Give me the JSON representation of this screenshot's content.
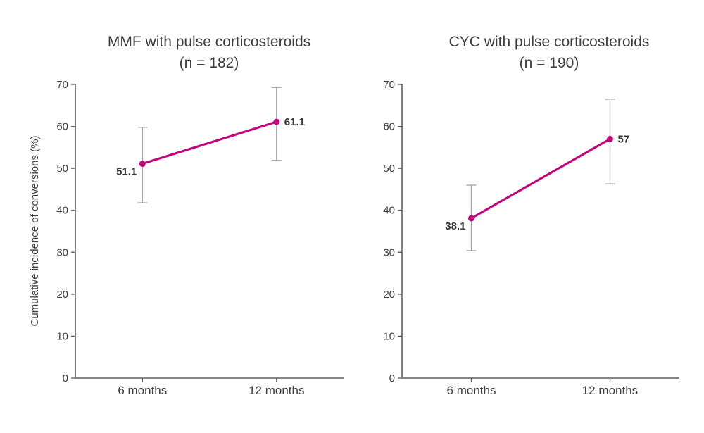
{
  "figure": {
    "background": "#ffffff",
    "text_color": "#3d3d3d",
    "axis_color": "#5f5f5f"
  },
  "chart_data": [
    {
      "type": "line",
      "title": "MMF with pulse corticosteroids",
      "subtitle": "(n = 182)",
      "ylabel": "Cumulative incidence of conversions (%)",
      "xlabel": "",
      "categories": [
        "6 months",
        "12 months"
      ],
      "series": [
        {
          "name": "Cumulative incidence of conversions",
          "values": [
            51.1,
            61.1
          ],
          "labels": [
            "51.1",
            "61.1"
          ],
          "error_low": [
            41.8,
            51.9
          ],
          "error_high": [
            59.8,
            69.3
          ]
        }
      ],
      "ylim": [
        0,
        70
      ],
      "yticks": [
        0,
        10,
        20,
        30,
        40,
        50,
        60,
        70
      ],
      "grid": false,
      "legend": "none",
      "line_color": "#c0087d",
      "marker_color": "#c0087d",
      "error_bar_color": "#a0a0a0",
      "label_positions": [
        "left",
        "right"
      ]
    },
    {
      "type": "line",
      "title": "CYC with pulse corticosteroids",
      "subtitle": "(n = 190)",
      "ylabel": "",
      "xlabel": "",
      "categories": [
        "6 months",
        "12 months"
      ],
      "series": [
        {
          "name": "Cumulative incidence of conversions",
          "values": [
            38.1,
            57
          ],
          "labels": [
            "38.1",
            "57"
          ],
          "error_low": [
            30.4,
            46.3
          ],
          "error_high": [
            46.0,
            66.5
          ]
        }
      ],
      "ylim": [
        0,
        70
      ],
      "yticks": [
        0,
        10,
        20,
        30,
        40,
        50,
        60,
        70
      ],
      "grid": false,
      "legend": "none",
      "line_color": "#c0087d",
      "marker_color": "#c0087d",
      "error_bar_color": "#a0a0a0",
      "label_positions": [
        "left",
        "right"
      ]
    }
  ]
}
